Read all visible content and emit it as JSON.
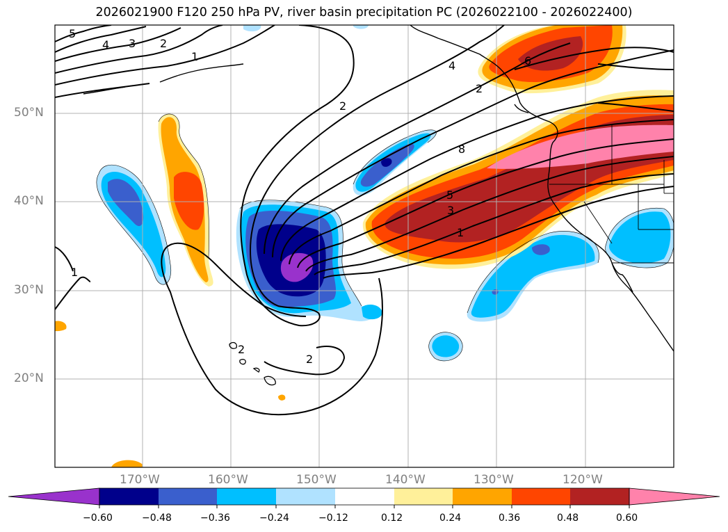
{
  "title": "2026021900 F120 250 hPa PV, river basin precipitation PC (2026022100 - 2026022400)",
  "lat_labels": [
    "50°N",
    "40°N",
    "30°N",
    "20°N"
  ],
  "lon_labels": [
    "170°W",
    "160°W",
    "150°W",
    "140°W",
    "130°W",
    "120°W"
  ],
  "colorbar": {
    "ticks": [
      "−0.60",
      "−0.48",
      "−0.36",
      "−0.24",
      "−0.12",
      "0.12",
      "0.24",
      "0.36",
      "0.48",
      "0.60"
    ],
    "colors": [
      "#9932cc",
      "#00008b",
      "#3a5fcd",
      "#00bfff",
      "#b0e2ff",
      "#ffffff",
      "#fff09a",
      "#ffa500",
      "#ff4500",
      "#b22222",
      "#ff82ab"
    ]
  },
  "contour_labels": [
    "5",
    "4",
    "3",
    "2",
    "1",
    "2",
    "4",
    "6",
    "8",
    "5",
    "3",
    "1",
    "1",
    "2",
    "2",
    "2"
  ],
  "colors": {
    "land_line": "#000000",
    "grid": "#b0b0b0"
  }
}
